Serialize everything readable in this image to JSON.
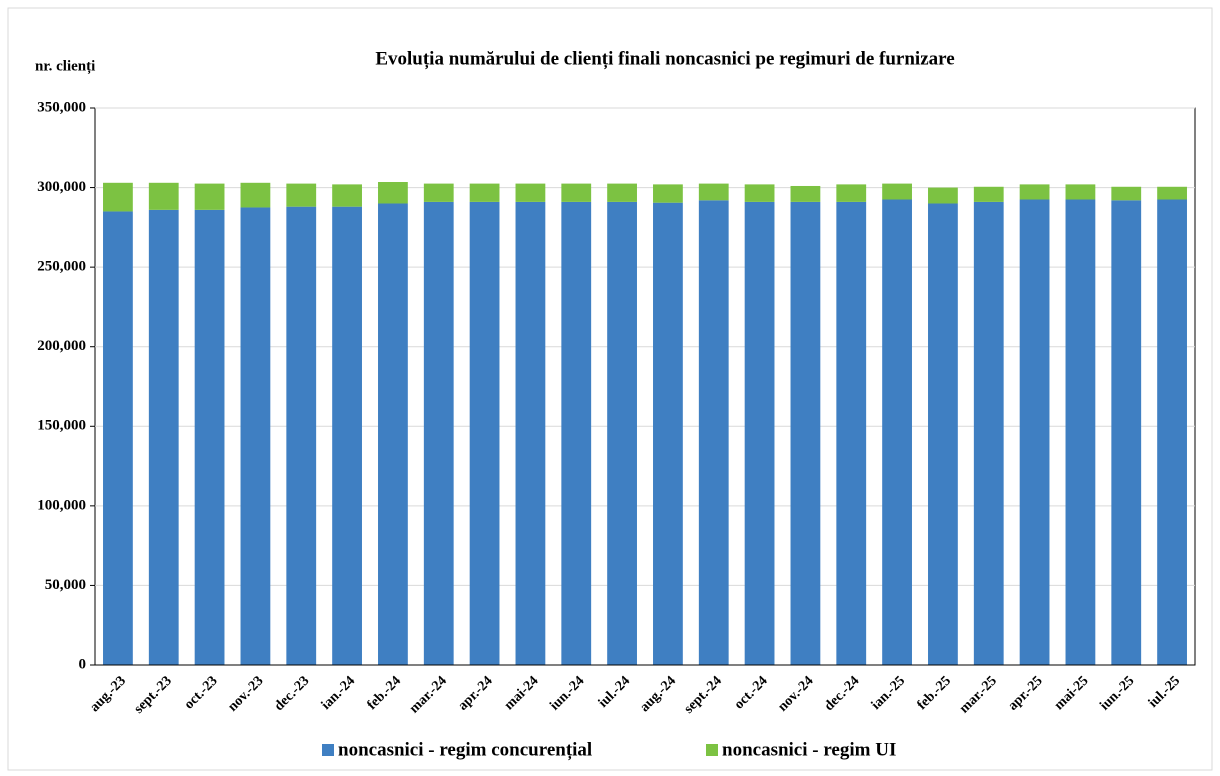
{
  "chart_data": {
    "type": "stacked_bar",
    "title": "Evoluția numărului de clienți finali noncasnici pe regimuri de furnizare",
    "y_label": "nr. clienți",
    "categories": [
      "aug.-23",
      "sept.-23",
      "oct.-23",
      "nov.-23",
      "dec.-23",
      "ian.-24",
      "feb.-24",
      "mar.-24",
      "apr.-24",
      "mai-24",
      "iun.-24",
      "iul.-24",
      "aug.-24",
      "sept.-24",
      "oct.-24",
      "nov.-24",
      "dec.-24",
      "ian.-25",
      "feb.-25",
      "mar.-25",
      "apr.-25",
      "mai-25",
      "iun.-25",
      "iul.-25"
    ],
    "series": [
      {
        "name": "noncasnici - regim concurențial",
        "color": "#3f7fc2",
        "values": [
          285000,
          286000,
          286000,
          287500,
          288000,
          288000,
          290000,
          291000,
          291000,
          291000,
          291000,
          291000,
          290500,
          292000,
          291000,
          291000,
          291000,
          292500,
          290000,
          291000,
          292500,
          292500,
          292000,
          292500
        ]
      },
      {
        "name": "noncasnici - regim UI",
        "color": "#7cc242",
        "values": [
          18000,
          17000,
          16500,
          15500,
          14500,
          14000,
          13500,
          11500,
          11500,
          11500,
          11500,
          11500,
          11500,
          10500,
          11000,
          10000,
          11000,
          10000,
          10000,
          9500,
          9500,
          9500,
          8500,
          8000
        ]
      }
    ],
    "ylim": [
      0,
      350000
    ],
    "yticks": [
      0,
      {
        "value": 50000,
        "label": "50,000"
      },
      {
        "value": 100000,
        "label": "100,000"
      },
      {
        "value": 150000,
        "label": "150,000"
      },
      {
        "value": 200000,
        "label": "200,000"
      },
      {
        "value": 250000,
        "label": "250,000"
      },
      {
        "value": 300000,
        "label": "300,000"
      },
      {
        "value": 350000,
        "label": "350,000"
      }
    ],
    "grid": true
  }
}
